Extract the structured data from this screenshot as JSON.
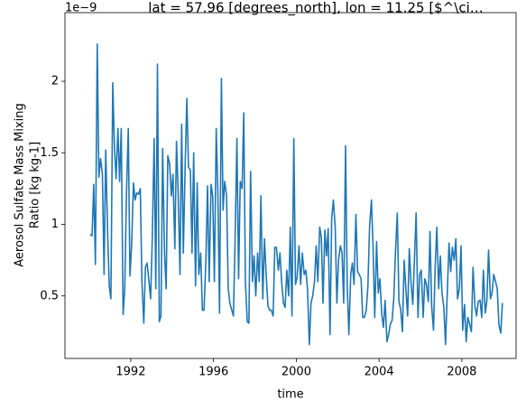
{
  "chart_data": {
    "type": "line",
    "title": "lat = 57.96 [degrees_north], lon = 11.25 [$^\\ci…",
    "offset_text": "1e−9",
    "y_label": [
      "Aerosol Sulfate Mass Mixing",
      "Ratio [kg kg-1]"
    ],
    "x_label": "time",
    "xlim": [
      1988.82,
      2010.62
    ],
    "xticks": [
      1992,
      1996,
      2000,
      2004,
      2008
    ],
    "ylim": [
      0.063,
      2.48
    ],
    "yticks": [
      0.5,
      1.0,
      1.5,
      2.0
    ],
    "x": [
      1990.04,
      1990.13,
      1990.21,
      1990.29,
      1990.38,
      1990.46,
      1990.54,
      1990.63,
      1990.71,
      1990.79,
      1990.88,
      1990.96,
      1991.04,
      1991.13,
      1991.21,
      1991.29,
      1991.38,
      1991.46,
      1991.54,
      1991.63,
      1991.71,
      1991.79,
      1991.88,
      1991.96,
      1992.04,
      1992.13,
      1992.21,
      1992.29,
      1992.38,
      1992.46,
      1992.54,
      1992.63,
      1992.71,
      1992.79,
      1992.88,
      1992.96,
      1993.04,
      1993.13,
      1993.21,
      1993.29,
      1993.38,
      1993.46,
      1993.54,
      1993.63,
      1993.71,
      1993.79,
      1993.88,
      1993.96,
      1994.04,
      1994.13,
      1994.21,
      1994.29,
      1994.38,
      1994.46,
      1994.54,
      1994.63,
      1994.71,
      1994.79,
      1994.88,
      1994.96,
      1995.04,
      1995.13,
      1995.21,
      1995.29,
      1995.38,
      1995.46,
      1995.54,
      1995.63,
      1995.71,
      1995.79,
      1995.88,
      1995.96,
      1996.04,
      1996.13,
      1996.21,
      1996.29,
      1996.38,
      1996.46,
      1996.54,
      1996.63,
      1996.71,
      1996.79,
      1996.88,
      1996.96,
      1997.04,
      1997.13,
      1997.21,
      1997.29,
      1997.38,
      1997.46,
      1997.54,
      1997.63,
      1997.71,
      1997.79,
      1997.88,
      1997.96,
      1998.04,
      1998.13,
      1998.21,
      1998.29,
      1998.38,
      1998.46,
      1998.54,
      1998.63,
      1998.71,
      1998.79,
      1998.88,
      1998.96,
      1999.04,
      1999.13,
      1999.21,
      1999.29,
      1999.38,
      1999.46,
      1999.54,
      1999.63,
      1999.71,
      1999.79,
      1999.88,
      1999.96,
      2000.04,
      2000.13,
      2000.21,
      2000.29,
      2000.38,
      2000.46,
      2000.54,
      2000.63,
      2000.71,
      2000.79,
      2000.88,
      2000.96,
      2001.04,
      2001.13,
      2001.21,
      2001.29,
      2001.38,
      2001.46,
      2001.54,
      2001.63,
      2001.71,
      2001.79,
      2001.88,
      2001.96,
      2002.04,
      2002.13,
      2002.21,
      2002.29,
      2002.38,
      2002.46,
      2002.54,
      2002.63,
      2002.71,
      2002.79,
      2002.88,
      2002.96,
      2003.04,
      2003.13,
      2003.21,
      2003.29,
      2003.38,
      2003.46,
      2003.54,
      2003.63,
      2003.71,
      2003.79,
      2003.88,
      2003.96,
      2004.04,
      2004.13,
      2004.21,
      2004.29,
      2004.38,
      2004.46,
      2004.54,
      2004.63,
      2004.71,
      2004.79,
      2004.88,
      2004.96,
      2005.04,
      2005.13,
      2005.21,
      2005.29,
      2005.38,
      2005.46,
      2005.54,
      2005.63,
      2005.71,
      2005.79,
      2005.88,
      2005.96,
      2006.04,
      2006.13,
      2006.21,
      2006.29,
      2006.38,
      2006.46,
      2006.54,
      2006.63,
      2006.71,
      2006.79,
      2006.88,
      2006.96,
      2007.04,
      2007.13,
      2007.21,
      2007.29,
      2007.38,
      2007.46,
      2007.54,
      2007.63,
      2007.71,
      2007.79,
      2007.88,
      2007.96,
      2008.04,
      2008.13,
      2008.21,
      2008.29,
      2008.38,
      2008.46,
      2008.54,
      2008.63,
      2008.71,
      2008.79,
      2008.88,
      2008.96,
      2009.04,
      2009.13,
      2009.21,
      2009.29,
      2009.38,
      2009.46,
      2009.54,
      2009.63,
      2009.71,
      2009.79,
      2009.88,
      2009.96
    ],
    "color": "#1f77b4",
    "values": [
      0.93,
      0.92,
      1.28,
      0.72,
      2.26,
      1.33,
      1.46,
      1.35,
      0.65,
      1.52,
      0.95,
      0.57,
      0.48,
      1.99,
      1.55,
      1.32,
      1.67,
      1.3,
      1.67,
      0.37,
      0.55,
      1.2,
      1.67,
      0.64,
      0.85,
      1.29,
      1.17,
      1.22,
      1.21,
      1.25,
      0.6,
      0.31,
      0.7,
      0.73,
      0.6,
      0.48,
      0.9,
      1.6,
      0.55,
      2.12,
      0.32,
      0.36,
      1.53,
      0.8,
      0.55,
      1.48,
      1.42,
      1.2,
      1.35,
      0.83,
      1.58,
      1.23,
      0.65,
      1.7,
      0.8,
      1.42,
      1.88,
      1.4,
      1.38,
      0.8,
      1.5,
      0.57,
      1.29,
      0.65,
      0.8,
      0.4,
      0.4,
      0.75,
      1.27,
      0.6,
      1.28,
      1.2,
      0.6,
      1.67,
      1.22,
      0.38,
      2.02,
      1.1,
      1.3,
      1.2,
      0.55,
      0.45,
      0.4,
      0.36,
      0.88,
      1.6,
      0.62,
      1.3,
      1.25,
      1.78,
      0.6,
      0.32,
      0.31,
      1.37,
      0.6,
      0.78,
      0.5,
      0.8,
      0.6,
      1.2,
      0.48,
      0.9,
      0.66,
      0.43,
      0.4,
      0.4,
      0.36,
      0.84,
      0.84,
      0.68,
      0.8,
      0.6,
      0.45,
      0.42,
      0.68,
      0.5,
      0.98,
      0.36,
      1.6,
      0.58,
      0.63,
      0.85,
      0.58,
      0.8,
      0.65,
      0.68,
      0.55,
      0.16,
      0.45,
      0.5,
      0.6,
      0.85,
      0.6,
      0.98,
      0.91,
      0.45,
      0.96,
      0.78,
      0.97,
      0.23,
      1.04,
      1.17,
      0.98,
      0.45,
      0.75,
      0.85,
      0.8,
      0.45,
      1.55,
      0.57,
      0.23,
      0.65,
      0.73,
      0.58,
      1.07,
      0.67,
      0.65,
      0.62,
      0.35,
      0.35,
      0.4,
      0.57,
      0.98,
      1.17,
      0.84,
      0.35,
      0.88,
      0.52,
      0.62,
      0.37,
      0.28,
      0.47,
      0.18,
      0.23,
      0.3,
      0.33,
      0.48,
      0.8,
      1.08,
      0.46,
      0.41,
      0.25,
      0.75,
      0.56,
      0.36,
      0.83,
      0.6,
      0.44,
      0.76,
      1.08,
      0.35,
      0.65,
      0.68,
      0.35,
      0.62,
      0.58,
      0.46,
      0.95,
      0.43,
      0.26,
      0.7,
      0.98,
      0.55,
      0.78,
      0.52,
      0.42,
      0.16,
      0.5,
      0.87,
      0.67,
      0.84,
      0.75,
      0.9,
      0.48,
      0.55,
      0.85,
      0.26,
      0.44,
      0.18,
      0.35,
      0.3,
      0.25,
      0.7,
      0.43,
      0.36,
      0.46,
      0.47,
      0.35,
      0.68,
      0.38,
      0.47,
      0.82,
      0.48,
      0.52,
      0.65,
      0.6,
      0.55,
      0.3,
      0.24,
      0.45
    ]
  }
}
